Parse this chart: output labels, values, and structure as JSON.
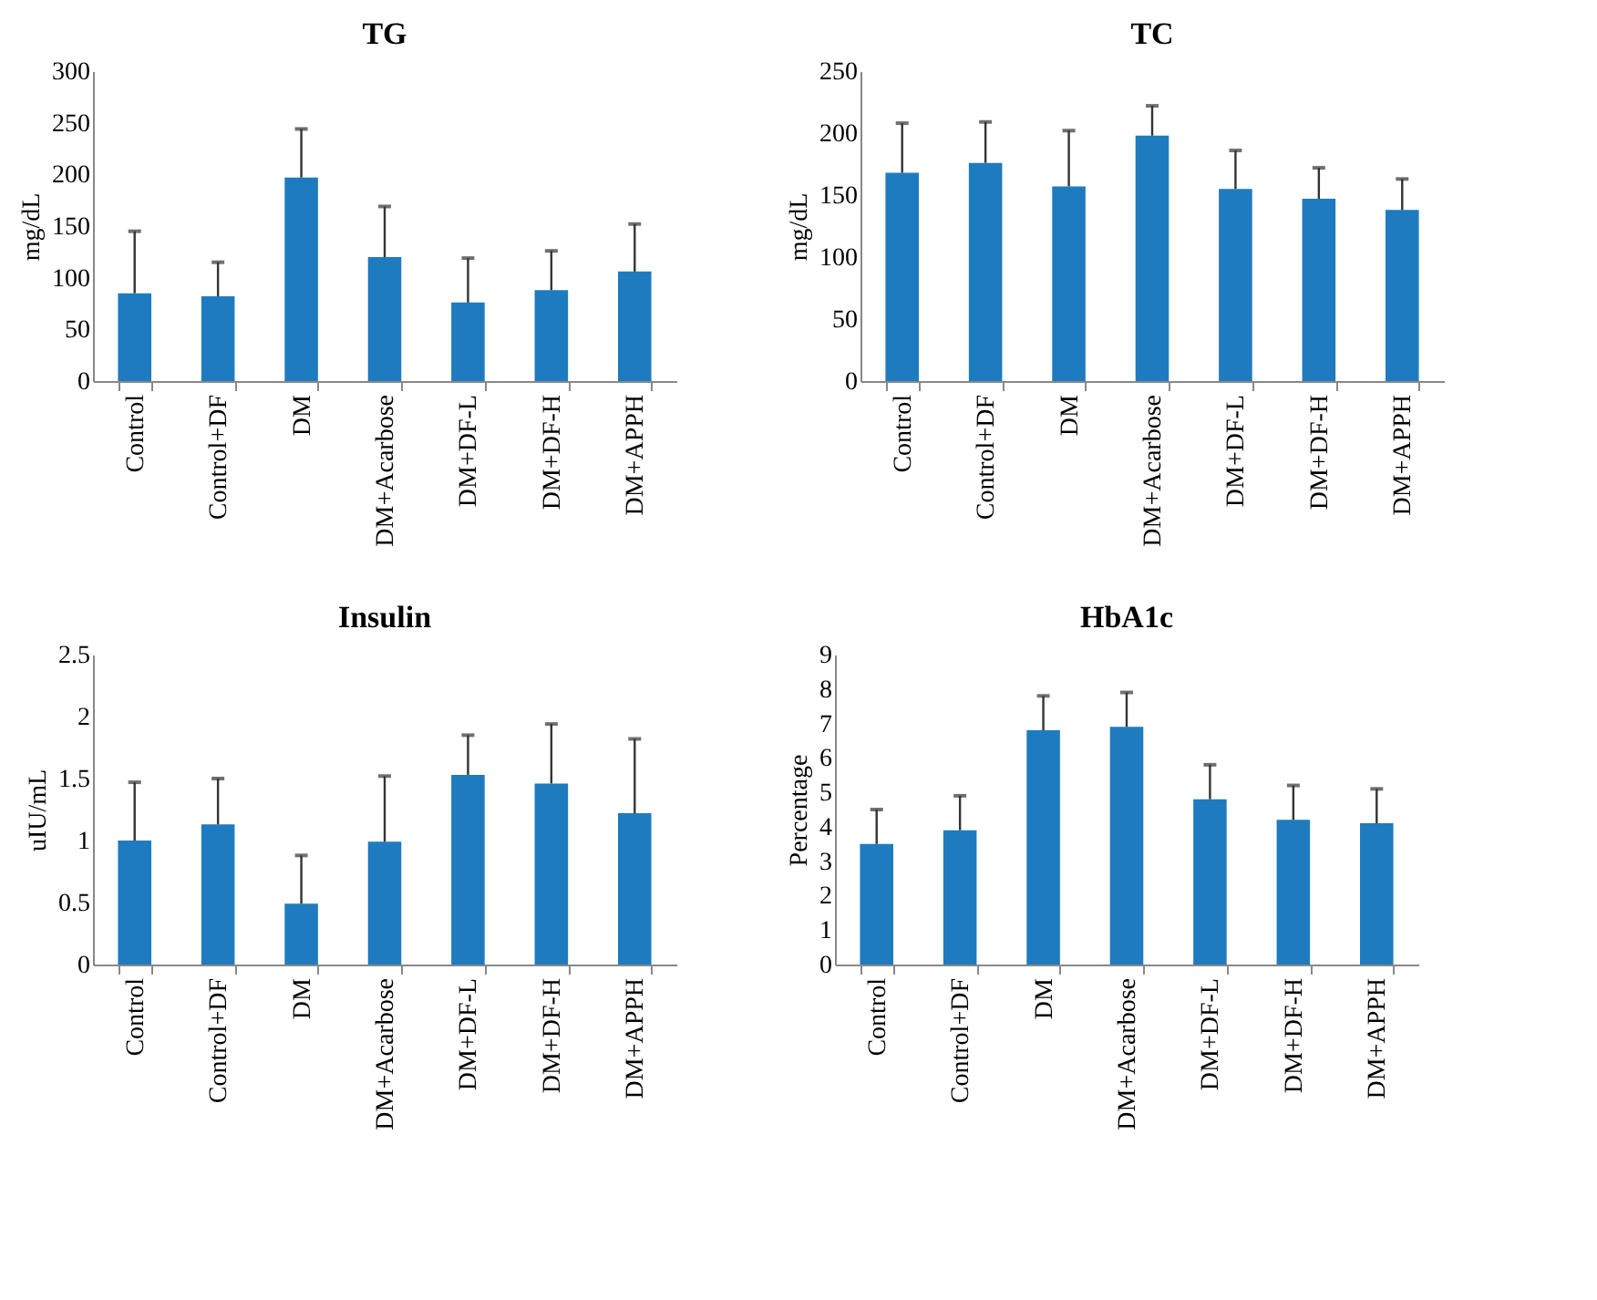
{
  "chart_data": [
    {
      "type": "bar",
      "title": "TG",
      "ylabel": "mg/dL",
      "categories": [
        "Control",
        "Control+DF",
        "DM",
        "DM+Acarbose",
        "DM+DF-L",
        "DM+DF-H",
        "DM+APPH"
      ],
      "values": [
        85,
        82,
        197,
        120,
        76,
        88,
        106
      ],
      "errors": [
        [
          85,
          145
        ],
        [
          82,
          115
        ],
        [
          197,
          244
        ],
        [
          120,
          169
        ],
        [
          76,
          119
        ],
        [
          88,
          126
        ],
        [
          106,
          152
        ]
      ],
      "color": "#1f7bbf",
      "ylim": [
        0,
        300
      ],
      "yticks": [
        0,
        50,
        100,
        150,
        200,
        250,
        300
      ],
      "grid": false
    },
    {
      "type": "bar",
      "title": "TC",
      "ylabel": "mg/dL",
      "categories": [
        "Control",
        "Control+DF",
        "DM",
        "DM+Acarbose",
        "DM+DF-L",
        "DM+DF-H",
        "DM+APPH"
      ],
      "values": [
        168,
        176,
        157,
        198,
        155,
        147,
        138
      ],
      "errors": [
        [
          168,
          208
        ],
        [
          176,
          209
        ],
        [
          157,
          202
        ],
        [
          198,
          222
        ],
        [
          155,
          186
        ],
        [
          147,
          172
        ],
        [
          138,
          163
        ]
      ],
      "color": "#1f7bbf",
      "ylim": [
        0,
        250
      ],
      "yticks": [
        0,
        50,
        100,
        150,
        200,
        250
      ],
      "grid": false
    },
    {
      "type": "bar",
      "title": "Insulin",
      "ylabel": "uIU/mL",
      "categories": [
        "Control",
        "Control+DF",
        "DM",
        "DM+Acarbose",
        "DM+DF-L",
        "DM+DF-H",
        "DM+APPH"
      ],
      "values": [
        1.0,
        1.13,
        0.49,
        0.99,
        1.53,
        1.46,
        1.22
      ],
      "errors": [
        [
          1.0,
          1.47
        ],
        [
          1.13,
          1.5
        ],
        [
          0.49,
          0.88
        ],
        [
          0.99,
          1.52
        ],
        [
          1.53,
          1.85
        ],
        [
          1.46,
          1.94
        ],
        [
          1.22,
          1.82
        ]
      ],
      "color": "#1f7bbf",
      "ylim": [
        0,
        2.5
      ],
      "yticks": [
        0,
        0.5,
        1,
        1.5,
        2,
        2.5
      ],
      "grid": false
    },
    {
      "type": "bar",
      "title": "HbA1c",
      "ylabel": "Percentage",
      "categories": [
        "Control",
        "Control+DF",
        "DM",
        "DM+Acarbose",
        "DM+DF-L",
        "DM+DF-H",
        "DM+APPH"
      ],
      "values": [
        3.5,
        3.9,
        6.8,
        6.9,
        4.8,
        4.2,
        4.1
      ],
      "errors": [
        [
          3.5,
          4.5
        ],
        [
          3.9,
          4.9
        ],
        [
          6.8,
          7.8
        ],
        [
          6.9,
          7.9
        ],
        [
          4.8,
          5.8
        ],
        [
          4.2,
          5.2
        ],
        [
          4.1,
          5.1
        ]
      ],
      "color": "#1f7bbf",
      "ylim": [
        0,
        9
      ],
      "yticks": [
        0,
        1,
        2,
        3,
        4,
        5,
        6,
        7,
        8,
        9
      ],
      "grid": false
    }
  ]
}
